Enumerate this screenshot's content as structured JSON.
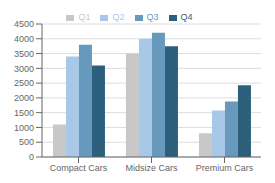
{
  "chart_data": {
    "type": "bar",
    "categories": [
      "Compact Cars",
      "Midsize Cars",
      "Premium Cars"
    ],
    "series": [
      {
        "name": "Q1",
        "color": "#c8c8c8",
        "values": [
          1100,
          3500,
          800
        ]
      },
      {
        "name": "Q2",
        "color": "#a8c8e8",
        "values": [
          3400,
          4000,
          1575
        ]
      },
      {
        "name": "Q3",
        "color": "#6699bb",
        "values": [
          3800,
          4200,
          1875
        ]
      },
      {
        "name": "Q4",
        "color": "#2b5f7b",
        "values": [
          3100,
          3750,
          2425
        ]
      }
    ],
    "ylim": [
      0,
      4500
    ],
    "yticks": [
      0,
      500,
      1000,
      1500,
      2000,
      2500,
      3000,
      3500,
      4000,
      4500
    ],
    "grid": true,
    "legend": "top"
  }
}
